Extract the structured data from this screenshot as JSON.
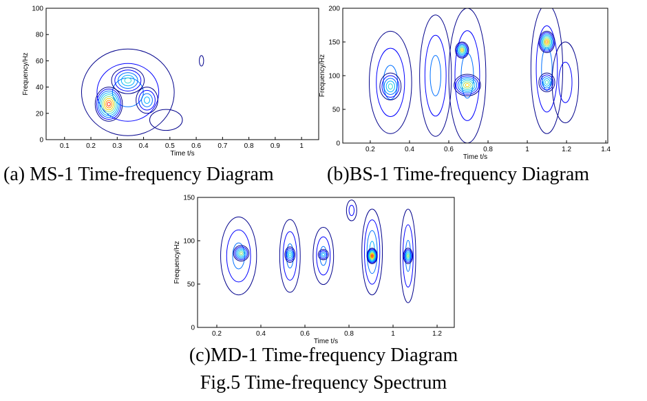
{
  "chart_data": [
    {
      "type": "contour",
      "caption": "(a) MS-1 Time-frequency Diagram",
      "x_label": "Time t/s",
      "y_label": "Frequency/Hz",
      "xlim": [
        0.03,
        1.065
      ],
      "ylim": [
        0,
        100
      ],
      "xticks": [
        0.1,
        0.2,
        0.3,
        0.4,
        0.5,
        0.6,
        0.7,
        0.8,
        0.9,
        1
      ],
      "yticks": [
        0,
        20,
        40,
        60,
        80,
        100
      ]
    },
    {
      "type": "contour",
      "caption": "(b)BS-1 Time-frequency Diagram",
      "x_label": "Time t/s",
      "y_label": "Frequency/Hz",
      "xlim": [
        0.06,
        1.41
      ],
      "ylim": [
        0,
        200
      ],
      "xticks": [
        0.2,
        0.4,
        0.6,
        0.8,
        1,
        1.2,
        1.4
      ],
      "yticks": [
        0,
        50,
        100,
        150,
        200
      ]
    },
    {
      "type": "contour",
      "caption": "(c)MD-1 Time-frequency Diagram",
      "x_label": "Time t/s",
      "y_label": "Frequency/Hz",
      "xlim": [
        0.1125,
        1.278
      ],
      "ylim": [
        0,
        150
      ],
      "xticks": [
        0.2,
        0.4,
        0.6,
        0.8,
        1,
        1.2
      ],
      "yticks": [
        0,
        50,
        100,
        150
      ]
    }
  ],
  "figure_caption": "Fig.5 Time-frequency Spectrum"
}
